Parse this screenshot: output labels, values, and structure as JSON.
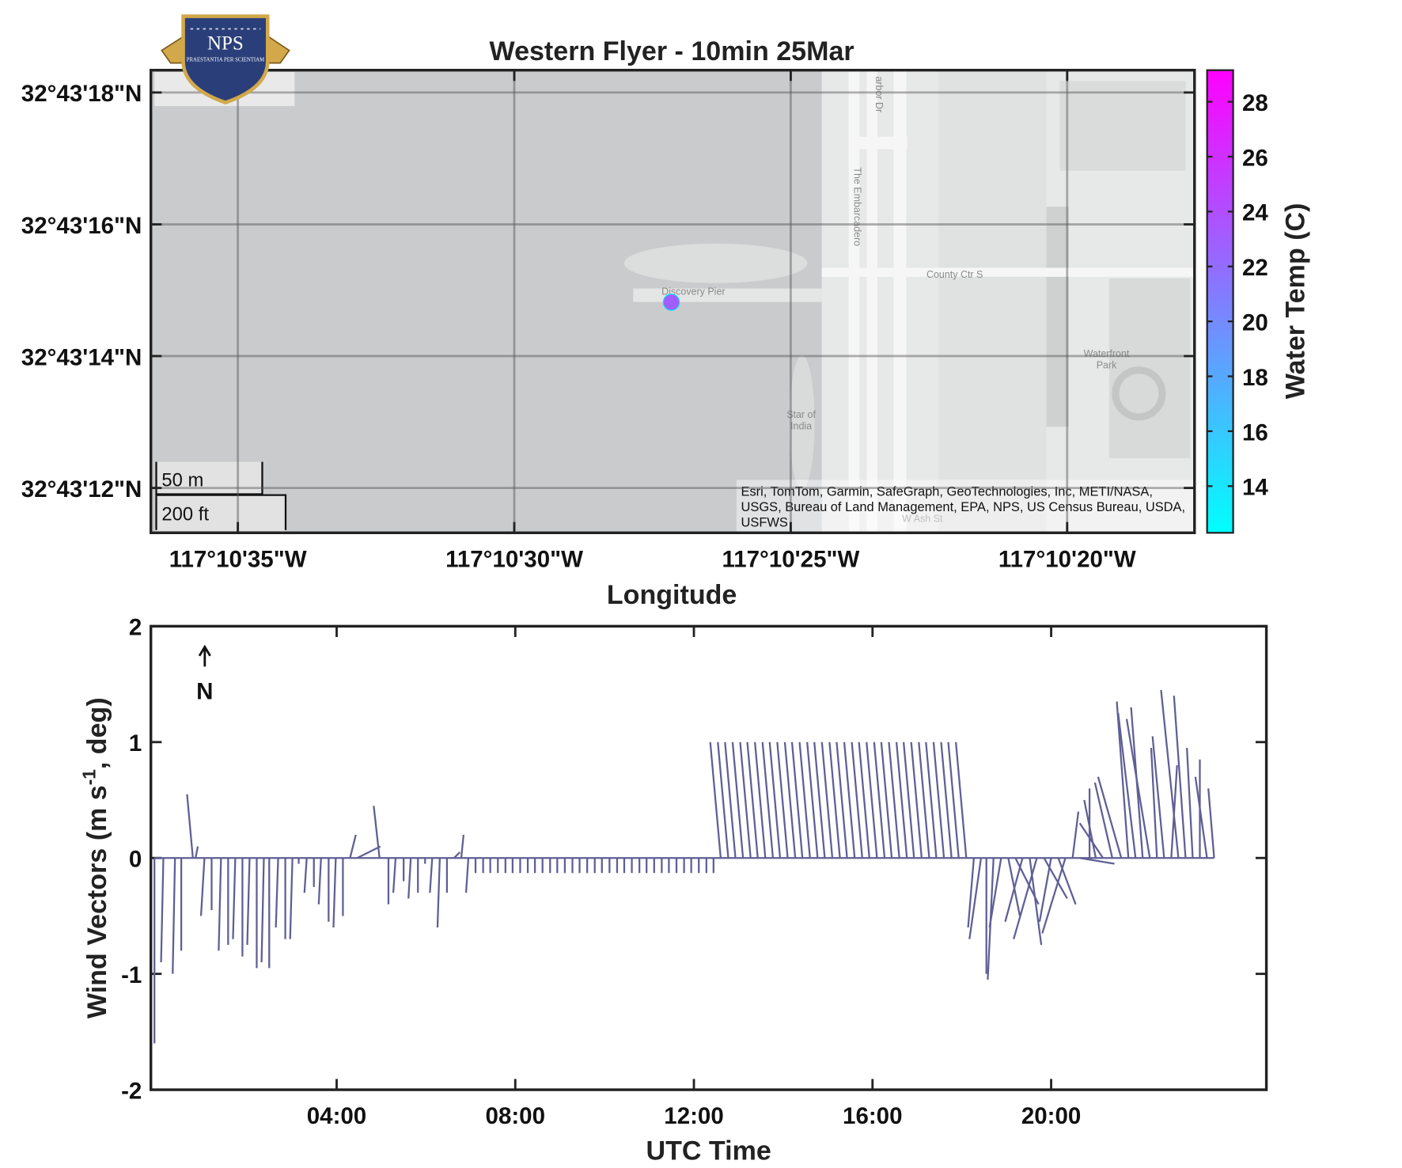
{
  "chart_data": [
    {
      "type": "map",
      "title": "Western Flyer - 10min 25Mar",
      "xlabel": "Longitude",
      "xlim": [
        -117.176826,
        -117.171582
      ],
      "xticks": [
        {
          "value": -117.176389,
          "label": "117°10'35\"W"
        },
        {
          "value": -117.175,
          "label": "117°10'30\"W"
        },
        {
          "value": -117.173611,
          "label": "117°10'25\"W"
        },
        {
          "value": -117.172222,
          "label": "117°10'20\"W"
        }
      ],
      "ylim": [
        32.719811,
        32.721761
      ],
      "yticks": [
        {
          "value": 32.721667,
          "label": "32°43'18\"N"
        },
        {
          "value": 32.721111,
          "label": "32°43'16\"N"
        },
        {
          "value": 32.720556,
          "label": "32°43'14\"N"
        },
        {
          "value": 32.72,
          "label": "32°43'12\"N"
        }
      ],
      "grid": true,
      "x": [
        -117.174211
      ],
      "y": [
        32.720783
      ],
      "values": [
        23
      ],
      "colormap": [
        "#00ffff",
        "#ff00ff"
      ],
      "clim": [
        12.3,
        29.15
      ],
      "cticks": [
        14,
        16,
        18,
        20,
        22,
        24,
        26,
        28
      ],
      "clabel": "Water Temp (C)",
      "map_labels": [
        "Discovery Pier",
        "The Embarcadero",
        "County Ctr S",
        "Waterfront",
        "Park",
        "Star of",
        "India",
        "W Ash St",
        "arbor Dr"
      ],
      "attribution": [
        "Esri, TomTom, Garmin, SafeGraph, GeoTechnologies, Inc, METI/NASA,",
        "USGS, Bureau of Land Management, EPA, NPS, US Census Bureau, USDA,",
        "USFWS"
      ],
      "scale_labels": [
        "50 m",
        "200 ft"
      ],
      "logo": [
        "NPS",
        "PRAESTANTIA PER SCIENTIAM"
      ]
    },
    {
      "type": "quiver",
      "xlabel": "UTC Time",
      "ylabel": [
        "Wind Vectors (m s",
        "-1",
        ", deg)"
      ],
      "annotation": "N",
      "color": "#5f5f96",
      "xlim": [
        -0.16,
        24.82
      ],
      "xticks": [
        {
          "value": 4,
          "label": "04:00"
        },
        {
          "value": 8,
          "label": "08:00"
        },
        {
          "value": 12,
          "label": "12:00"
        },
        {
          "value": 16,
          "label": "16:00"
        },
        {
          "value": 20,
          "label": "20:00"
        }
      ],
      "ylim": [
        -2,
        2
      ],
      "yticks": [
        -2,
        -1,
        0,
        1,
        2
      ],
      "x": [
        -0.08,
        0.12,
        0.38,
        0.52,
        0.78,
        0.84,
        1.04,
        1.2,
        1.41,
        1.57,
        1.73,
        1.89,
        2.05,
        2.21,
        2.37,
        2.49,
        2.69,
        2.85,
        3.01,
        3.15,
        3.33,
        3.49,
        3.65,
        3.82,
        3.98,
        4.14,
        4.3,
        4.46,
        4.96,
        5.16,
        5.32,
        5.5,
        5.66,
        5.82,
        5.98,
        6.14,
        6.31,
        6.47,
        6.63,
        6.79,
        6.95,
        7.11,
        7.28,
        7.44,
        7.61,
        7.78,
        7.94,
        8.11,
        8.28,
        8.44,
        8.61,
        8.78,
        8.94,
        9.11,
        9.28,
        9.44,
        9.61,
        9.78,
        9.94,
        10.11,
        10.28,
        10.44,
        10.61,
        10.78,
        10.94,
        11.11,
        11.28,
        11.44,
        11.61,
        11.78,
        11.94,
        12.11,
        12.28,
        12.44,
        12.6,
        12.77,
        12.93,
        13.1,
        13.27,
        13.43,
        13.6,
        13.77,
        13.93,
        14.1,
        14.27,
        14.43,
        14.6,
        14.77,
        14.93,
        15.1,
        15.27,
        15.43,
        15.6,
        15.77,
        15.93,
        16.1,
        16.27,
        16.43,
        16.6,
        16.77,
        16.93,
        17.1,
        17.27,
        17.43,
        17.6,
        17.77,
        17.93,
        18.1,
        18.27,
        18.43,
        18.55,
        18.71,
        18.88,
        19.04,
        19.2,
        19.36,
        19.52,
        19.68,
        19.84,
        20.0,
        20.16,
        20.32,
        20.48,
        20.64,
        20.86,
        21.0,
        21.16,
        21.37,
        21.57,
        21.73,
        21.89,
        22.05,
        22.21,
        22.37,
        22.53,
        22.69,
        22.85,
        23.01,
        23.17,
        23.33,
        23.49,
        23.65
      ],
      "u": [
        0,
        -0.02,
        -0.02,
        0,
        -0.05,
        0.02,
        -0.03,
        0,
        -0.02,
        0,
        -0.02,
        0,
        -0.02,
        0,
        -0.02,
        0,
        -0.02,
        0,
        -0.02,
        0,
        -0.02,
        0,
        -0.02,
        0,
        -0.02,
        0,
        0.05,
        0.2,
        -0.05,
        0,
        -0.02,
        0,
        -0.02,
        0,
        0,
        -0.02,
        -0.02,
        0,
        0.05,
        0.02,
        -0.02,
        0,
        0,
        0,
        0,
        0,
        0,
        0,
        0,
        0,
        0,
        0,
        0,
        0,
        0,
        0,
        0,
        0,
        0,
        0,
        0,
        0,
        0,
        0,
        0,
        0,
        0,
        0,
        0,
        0,
        0,
        0,
        0,
        0,
        -0.09,
        -0.09,
        -0.09,
        -0.09,
        -0.09,
        -0.09,
        -0.09,
        -0.09,
        -0.09,
        -0.09,
        -0.09,
        -0.09,
        -0.09,
        -0.09,
        -0.09,
        -0.09,
        -0.09,
        -0.09,
        -0.09,
        -0.09,
        -0.09,
        -0.09,
        -0.09,
        -0.09,
        -0.09,
        -0.09,
        -0.09,
        -0.09,
        -0.09,
        -0.09,
        -0.09,
        -0.09,
        -0.09,
        -0.09,
        -0.05,
        -0.1,
        0,
        -0.05,
        -0.1,
        0.1,
        0.2,
        -0.15,
        0.1,
        -0.2,
        0.2,
        -0.1,
        0.15,
        -0.2,
        0.05,
        0.3,
        0,
        -0.1,
        -0.2,
        -0.15,
        -0.2,
        -0.1,
        -0.15,
        -0.1,
        -0.2,
        -0.05,
        -0.1,
        0.05,
        -0.15,
        -0.1,
        -0.05,
        0,
        -0.1,
        -0.05
      ],
      "v": [
        -1.6,
        -0.9,
        -1.0,
        -0.8,
        0.55,
        0.1,
        -0.5,
        -0.45,
        -0.8,
        -0.75,
        -0.7,
        -0.85,
        -0.75,
        -0.95,
        -0.9,
        -0.95,
        -0.6,
        -0.7,
        -0.7,
        -0.05,
        -0.3,
        -0.25,
        -0.4,
        -0.55,
        -0.6,
        -0.5,
        0.2,
        0.1,
        0.45,
        -0.4,
        -0.3,
        -0.2,
        -0.35,
        -0.3,
        -0.05,
        -0.3,
        -0.6,
        -0.3,
        0.05,
        0.2,
        -0.3,
        -0.13,
        -0.13,
        -0.13,
        -0.13,
        -0.13,
        -0.13,
        -0.13,
        -0.13,
        -0.13,
        -0.13,
        -0.13,
        -0.13,
        -0.13,
        -0.13,
        -0.13,
        -0.13,
        -0.13,
        -0.13,
        -0.13,
        -0.13,
        -0.13,
        -0.13,
        -0.13,
        -0.13,
        -0.13,
        -0.13,
        -0.13,
        -0.13,
        -0.13,
        -0.13,
        -0.13,
        -0.13,
        -0.13,
        1,
        1,
        1,
        1,
        1,
        1,
        1,
        1,
        1,
        1,
        1,
        1,
        1,
        1,
        1,
        1,
        1,
        1,
        1,
        1,
        1,
        1,
        1,
        1,
        1,
        1,
        1,
        1,
        1,
        1,
        1,
        1,
        1,
        1,
        -0.6,
        -0.7,
        -1.0,
        -1.05,
        -0.6,
        -0.5,
        -0.4,
        -0.55,
        -0.75,
        -0.7,
        -0.35,
        -0.55,
        -0.4,
        -0.65,
        0.4,
        -0.05,
        0.6,
        0.5,
        0.3,
        0.65,
        0.7,
        1.35,
        1.25,
        1.3,
        1.2,
        0.95,
        1.05,
        0.8,
        1.45,
        1.4,
        0.95,
        0.85,
        0.7,
        0.6
      ]
    }
  ]
}
